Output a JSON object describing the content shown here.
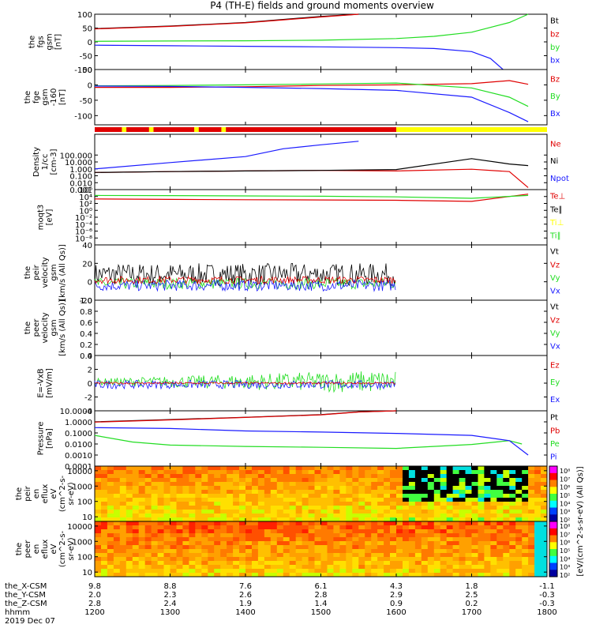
{
  "title": "P4 (TH-E) fields and ground moments overview",
  "footer_labels": [
    "the_X-CSM",
    "the_Y-CSM",
    "the_Z-CSM",
    "hhmm",
    "2019 Dec 07"
  ],
  "x_ticks": [
    "1200",
    "1300",
    "1400",
    "1500",
    "1600",
    "1700",
    "1800"
  ],
  "x_label_rows": {
    "the_X-CSM": [
      "9.8",
      "8.8",
      "7.6",
      "6.1",
      "4.3",
      "1.8",
      "-1.1"
    ],
    "the_Y-CSM": [
      "2.0",
      "2.3",
      "2.6",
      "2.8",
      "2.9",
      "2.5",
      "-0.3"
    ],
    "the_Z-CSM": [
      "2.8",
      "2.4",
      "1.9",
      "1.4",
      "0.9",
      "0.2",
      "-0.3"
    ]
  },
  "colors": {
    "black": "#000000",
    "red": "#e00000",
    "green": "#22dd22",
    "blue": "#1a1aff",
    "yellow": "#ffff00"
  },
  "chart_data": [
    {
      "type": "line",
      "ylabel": [
        "the",
        "fgs",
        "gsm",
        "[nT]"
      ],
      "ylim": [
        -100,
        100
      ],
      "yticks": [
        "100",
        "50",
        "0",
        "-50",
        "-100"
      ],
      "legend": [
        "Bt",
        "bz",
        "by",
        "bx"
      ],
      "legend_colors": [
        "black",
        "red",
        "green",
        "blue"
      ],
      "series": [
        {
          "name": "Bt",
          "x": [
            "12:00",
            "13:00",
            "14:00",
            "15:00",
            "15:30"
          ],
          "y": [
            48,
            57,
            70,
            92,
            100
          ]
        },
        {
          "name": "bz",
          "x": [
            "12:00",
            "13:00",
            "14:00",
            "15:00",
            "15:30"
          ],
          "y": [
            47,
            56,
            69,
            90,
            100
          ]
        },
        {
          "name": "by",
          "x": [
            "12:00",
            "13:00",
            "14:00",
            "15:00",
            "16:00",
            "16:30",
            "17:00",
            "17:30",
            "17:45"
          ],
          "y": [
            2,
            3,
            4,
            6,
            12,
            20,
            35,
            70,
            100
          ]
        },
        {
          "name": "bx",
          "x": [
            "12:00",
            "13:00",
            "14:00",
            "15:00",
            "16:00",
            "16:30",
            "17:00",
            "17:15",
            "17:25"
          ],
          "y": [
            -12,
            -14,
            -16,
            -18,
            -21,
            -24,
            -35,
            -60,
            -100
          ]
        }
      ]
    },
    {
      "type": "line",
      "ylabel": [
        "the",
        "fge",
        "gsm",
        "-160",
        "[nT]"
      ],
      "ylim": [
        -130,
        50
      ],
      "yticks": [
        "50",
        "0",
        "-50",
        "-100"
      ],
      "legend": [
        "Bz",
        "By",
        "Bx"
      ],
      "legend_colors": [
        "red",
        "green",
        "blue"
      ],
      "series": [
        {
          "name": "Bz",
          "x": [
            "12:00",
            "13:00",
            "14:00",
            "15:00",
            "16:00",
            "17:00",
            "17:30",
            "17:45"
          ],
          "y": [
            -8,
            -8,
            -6,
            -2,
            0,
            4,
            14,
            2
          ]
        },
        {
          "name": "By",
          "x": [
            "12:00",
            "13:00",
            "14:00",
            "15:00",
            "16:00",
            "17:00",
            "17:30",
            "17:45"
          ],
          "y": [
            -3,
            -2,
            0,
            3,
            6,
            -10,
            -40,
            -70
          ]
        },
        {
          "name": "Bx",
          "x": [
            "12:00",
            "13:00",
            "14:00",
            "15:00",
            "16:00",
            "17:00",
            "17:30",
            "17:45"
          ],
          "y": [
            -4,
            -5,
            -8,
            -12,
            -18,
            -40,
            -90,
            -120
          ]
        }
      ]
    },
    {
      "type": "line",
      "ylabel": [
        "Density",
        "1/cc",
        "[cm-3]"
      ],
      "scale": "log",
      "ylim": [
        0.001,
        100000
      ],
      "yticks": [
        "100.000",
        "10.000",
        "1.000",
        "0.100",
        "0.010",
        "0.001"
      ],
      "legend": [
        "Ne",
        "Ni",
        "Npot"
      ],
      "legend_colors": [
        "red",
        "black",
        "blue"
      ],
      "series": [
        {
          "name": "Ne",
          "x": [
            "12:00",
            "13:00",
            "14:00",
            "15:00",
            "16:00",
            "17:00",
            "17:30",
            "17:45"
          ],
          "y": [
            0.3,
            0.4,
            0.5,
            0.6,
            0.5,
            0.9,
            0.4,
            0.002
          ]
        },
        {
          "name": "Ni",
          "x": [
            "12:00",
            "13:00",
            "14:00",
            "15:00",
            "16:00",
            "17:00",
            "17:30",
            "17:45"
          ],
          "y": [
            0.3,
            0.4,
            0.5,
            0.6,
            0.8,
            30,
            5,
            3
          ]
        },
        {
          "name": "Npot",
          "x": [
            "12:00",
            "13:00",
            "14:00",
            "14:30",
            "15:00",
            "15:30"
          ],
          "y": [
            1,
            8,
            60,
            800,
            3000,
            10000
          ]
        }
      ]
    },
    {
      "type": "line",
      "ylabel": [
        "moqt3",
        "[eV]"
      ],
      "scale": "log",
      "ylim": [
        1e-10,
        1000000.0
      ],
      "yticks": [
        "10⁶",
        "10⁴",
        "10²",
        "10⁰",
        "10⁻²",
        "10⁻⁴",
        "10⁻⁶",
        "10⁻⁸"
      ],
      "legend": [
        "Te⊥",
        "Te∥",
        "Ti⊥",
        "Ti∥"
      ],
      "legend_colors": [
        "red",
        "black",
        "yellow",
        "green"
      ],
      "series": [
        {
          "name": "Te⊥",
          "x": [
            "12:00",
            "13:00",
            "14:00",
            "15:00",
            "16:00",
            "17:00",
            "17:45"
          ],
          "y": [
            2000,
            1500,
            1200,
            1000,
            800,
            400,
            50000
          ]
        },
        {
          "name": "Ti∥",
          "x": [
            "12:00",
            "13:00",
            "14:00",
            "15:00",
            "16:00",
            "17:00",
            "17:45"
          ],
          "y": [
            20000,
            18000,
            15000,
            12000,
            8000,
            3000,
            20000
          ]
        }
      ]
    },
    {
      "type": "line",
      "ylabel": [
        "the",
        "peir",
        "velocity",
        "gsm",
        "[km/s (All Qs)]"
      ],
      "ylim": [
        -20,
        40
      ],
      "yticks": [
        "40",
        "20",
        "0",
        "-20"
      ],
      "legend": [
        "Vt",
        "Vz",
        "Vy",
        "Vx"
      ],
      "legend_colors": [
        "black",
        "red",
        "green",
        "blue"
      ]
    },
    {
      "type": "line",
      "ylabel": [
        "the",
        "peer",
        "velocity",
        "gsm",
        "[km/s (All Qs)]"
      ],
      "ylim": [
        0,
        1
      ],
      "yticks": [
        "1.0",
        "0.8",
        "0.6",
        "0.4",
        "0.2",
        "0.0"
      ],
      "legend": [
        "Vt",
        "Vz",
        "Vy",
        "Vx"
      ],
      "legend_colors": [
        "black",
        "red",
        "green",
        "blue"
      ]
    },
    {
      "type": "line",
      "ylabel": [
        "E=-VxB",
        "[mV/m]"
      ],
      "ylim": [
        -4,
        4
      ],
      "yticks": [
        "4",
        "2",
        "0",
        "-2",
        "-4"
      ],
      "legend": [
        "Ez",
        "Ey",
        "Ex"
      ],
      "legend_colors": [
        "red",
        "green",
        "blue"
      ]
    },
    {
      "type": "line",
      "ylabel": [
        "Pressure",
        "[nPa]"
      ],
      "scale": "log",
      "ylim": [
        0.0001,
        10
      ],
      "yticks": [
        "10.0000",
        "1.0000",
        "0.1000",
        "0.0100",
        "0.0010",
        "0.0001"
      ],
      "legend": [
        "Pt",
        "Pb",
        "Pe",
        "Pi"
      ],
      "legend_colors": [
        "black",
        "red",
        "green",
        "blue"
      ],
      "series": [
        {
          "name": "Pt",
          "x": [
            "12:00",
            "13:00",
            "14:00",
            "15:00",
            "15:30",
            "16:00"
          ],
          "y": [
            1.0,
            1.6,
            2.6,
            4.5,
            8,
            10
          ]
        },
        {
          "name": "Pb",
          "x": [
            "12:00",
            "13:00",
            "14:00",
            "15:00",
            "15:30",
            "16:00"
          ],
          "y": [
            0.95,
            1.5,
            2.5,
            4.3,
            7.8,
            10
          ]
        },
        {
          "name": "Pe",
          "x": [
            "12:00",
            "12:30",
            "13:00",
            "14:00",
            "15:00",
            "16:00",
            "17:00",
            "17:30",
            "17:40"
          ],
          "y": [
            0.06,
            0.015,
            0.008,
            0.006,
            0.005,
            0.004,
            0.009,
            0.02,
            0.01
          ]
        },
        {
          "name": "Pi",
          "x": [
            "12:00",
            "13:00",
            "14:00",
            "15:00",
            "16:00",
            "17:00",
            "17:30",
            "17:45"
          ],
          "y": [
            0.3,
            0.25,
            0.15,
            0.12,
            0.09,
            0.06,
            0.02,
            0.001
          ]
        }
      ]
    },
    {
      "type": "heatmap",
      "ylabel": [
        "the",
        "peir",
        "en",
        "eflux",
        "eV",
        "(cm^2-s-",
        "sr-eV)"
      ],
      "scale": "log",
      "ylim": [
        5,
        20000
      ],
      "yticks": [
        "10000",
        "1000",
        "100",
        "10"
      ]
    },
    {
      "type": "heatmap",
      "ylabel": [
        "the",
        "peer",
        "en",
        "eflux",
        "eV",
        "(cm^2-s-",
        "sr-eV)"
      ],
      "scale": "log",
      "ylim": [
        5,
        20000
      ],
      "yticks": [
        "10000",
        "1000",
        "100",
        "10"
      ]
    }
  ],
  "colorbar": {
    "label": "[eV/(cm^2-s-sr-eV) (All Qs)]",
    "ticks": [
      "10⁸",
      "10⁷",
      "10⁶",
      "10⁵",
      "10⁴",
      "10³",
      "10²"
    ]
  }
}
